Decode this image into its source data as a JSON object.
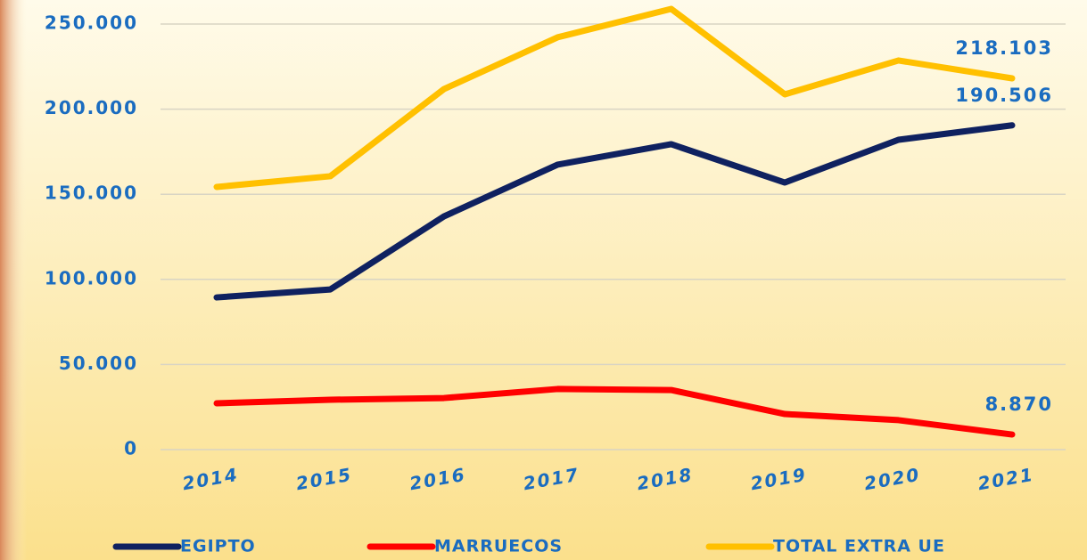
{
  "chart_data": {
    "type": "line",
    "categories": [
      "2014",
      "2015",
      "2016",
      "2017",
      "2018",
      "2019",
      "2020",
      "2021"
    ],
    "series": [
      {
        "name": "EGIPTO",
        "color": "#0f2160",
        "values": [
          89400,
          94100,
          137000,
          167400,
          179400,
          156900,
          182000,
          190506
        ],
        "value_labels": [
          null,
          null,
          null,
          null,
          null,
          null,
          null,
          "190.506"
        ]
      },
      {
        "name": "MARRUECOS",
        "color": "#ff0000",
        "values": [
          27200,
          29300,
          30300,
          35600,
          35000,
          20900,
          17300,
          8870
        ],
        "value_labels": [
          null,
          null,
          null,
          null,
          null,
          null,
          null,
          "8.870"
        ]
      },
      {
        "name": "TOTAL EXTRA UE",
        "color": "#ffc000",
        "values": [
          154300,
          160600,
          211800,
          242200,
          258900,
          208700,
          228600,
          218103
        ],
        "value_labels": [
          null,
          null,
          null,
          null,
          null,
          null,
          null,
          "218.103"
        ]
      }
    ],
    "ylim": [
      0,
      260000
    ],
    "yticks": [
      0,
      {
        "value": 50000,
        "label": "50.000"
      },
      {
        "value": 100000,
        "label": "100.000"
      },
      {
        "value": 150000,
        "label": "150.000"
      },
      {
        "value": 200000,
        "label": "200.000"
      },
      {
        "value": 250000,
        "label": "250.000"
      }
    ],
    "grid": true,
    "legend": "bottom"
  }
}
